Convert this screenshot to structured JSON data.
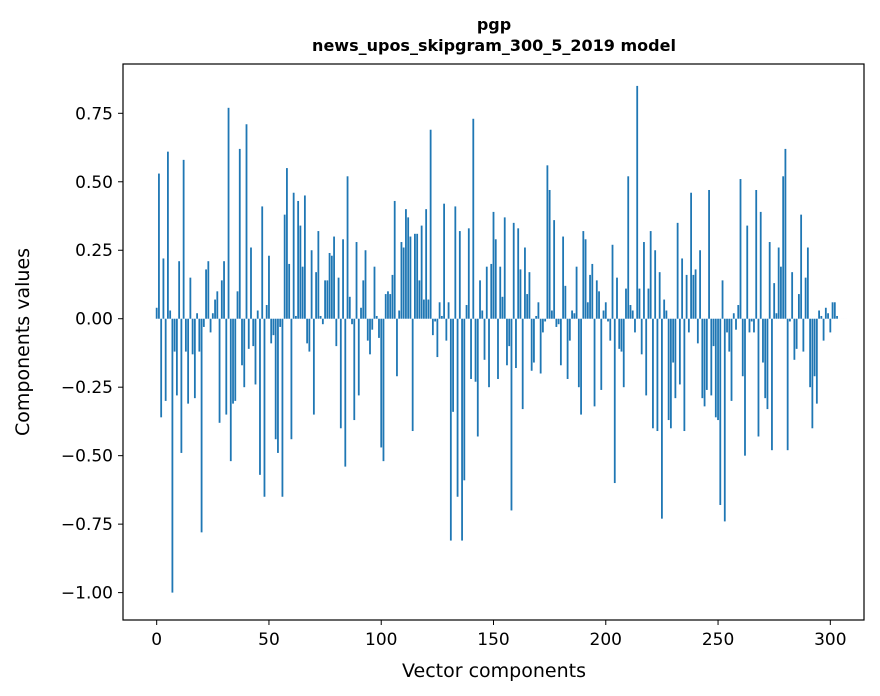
{
  "chart_data": {
    "type": "bar",
    "title": "pgp",
    "subtitle": "news_upos_skipgram_300_5_2019 model",
    "xlabel": "Vector components",
    "ylabel": "Components values",
    "xlim": [
      -15,
      315
    ],
    "ylim": [
      -1.1,
      0.93
    ],
    "xticks": [
      0,
      50,
      100,
      150,
      200,
      250,
      300
    ],
    "xtick_labels": [
      "0",
      "50",
      "100",
      "150",
      "200",
      "250",
      "300"
    ],
    "yticks": [
      -1.0,
      -0.75,
      -0.5,
      -0.25,
      0.0,
      0.25,
      0.5,
      0.75
    ],
    "ytick_labels": [
      "−1.00",
      "−0.75",
      "−0.50",
      "−0.25",
      "0.00",
      "0.25",
      "0.50",
      "0.75"
    ],
    "bar_color": "#1f77b4",
    "grid": false,
    "legend": "none",
    "x_start": 0,
    "values": [
      0.04,
      0.53,
      -0.36,
      0.22,
      -0.3,
      0.61,
      0.03,
      -1.0,
      -0.12,
      -0.28,
      0.21,
      -0.49,
      0.58,
      -0.12,
      -0.31,
      0.15,
      -0.13,
      -0.29,
      0.02,
      -0.12,
      -0.78,
      -0.03,
      0.18,
      0.21,
      -0.05,
      0.02,
      0.07,
      0.1,
      -0.38,
      0.14,
      0.21,
      -0.35,
      0.77,
      -0.52,
      -0.31,
      -0.3,
      0.1,
      0.62,
      -0.17,
      -0.25,
      0.71,
      -0.11,
      0.26,
      -0.1,
      -0.24,
      0.03,
      -0.57,
      0.41,
      -0.65,
      0.05,
      0.23,
      -0.09,
      -0.06,
      -0.44,
      -0.49,
      -0.03,
      -0.65,
      0.38,
      0.55,
      0.2,
      -0.44,
      0.46,
      0.01,
      0.43,
      0.34,
      0.19,
      0.45,
      -0.09,
      -0.12,
      0.25,
      -0.35,
      0.17,
      0.32,
      0.01,
      -0.02,
      0.14,
      0.14,
      0.24,
      0.23,
      0.3,
      -0.1,
      0.15,
      -0.4,
      0.29,
      -0.54,
      0.52,
      0.08,
      -0.02,
      -0.37,
      0.28,
      -0.28,
      0.04,
      0.14,
      0.25,
      -0.08,
      -0.13,
      -0.04,
      0.19,
      0.01,
      -0.07,
      -0.47,
      -0.52,
      0.09,
      0.1,
      0.09,
      0.16,
      0.43,
      -0.21,
      0.03,
      0.28,
      0.26,
      0.4,
      0.37,
      0.3,
      -0.41,
      0.31,
      0.31,
      0.14,
      0.34,
      0.07,
      0.4,
      0.07,
      0.69,
      -0.06,
      -0.01,
      -0.14,
      0.06,
      0.01,
      0.42,
      -0.08,
      0.06,
      -0.81,
      -0.34,
      0.41,
      -0.65,
      0.32,
      -0.81,
      -0.59,
      0.05,
      0.33,
      -0.22,
      0.73,
      -0.23,
      -0.43,
      0.14,
      0.03,
      -0.15,
      0.19,
      -0.25,
      0.2,
      0.39,
      0.29,
      -0.22,
      0.19,
      0.08,
      0.37,
      -0.17,
      -0.1,
      -0.7,
      0.35,
      -0.18,
      0.33,
      0.18,
      -0.33,
      0.26,
      0.09,
      0.17,
      -0.19,
      -0.16,
      0.01,
      0.06,
      -0.2,
      -0.05,
      -0.01,
      0.56,
      0.47,
      0.03,
      0.36,
      -0.03,
      -0.02,
      -0.17,
      0.3,
      0.12,
      -0.22,
      -0.08,
      0.03,
      0.02,
      0.19,
      -0.25,
      -0.35,
      0.32,
      0.29,
      0.06,
      0.16,
      0.2,
      -0.32,
      0.14,
      0.1,
      -0.26,
      0.03,
      0.06,
      -0.01,
      -0.08,
      0.27,
      -0.6,
      0.15,
      -0.11,
      -0.12,
      -0.25,
      0.11,
      0.52,
      0.05,
      0.03,
      -0.05,
      0.85,
      0.11,
      -0.13,
      0.28,
      -0.28,
      0.11,
      0.32,
      -0.4,
      0.25,
      -0.41,
      0.17,
      -0.73,
      0.07,
      0.03,
      -0.37,
      -0.4,
      -0.16,
      -0.29,
      0.35,
      -0.24,
      0.22,
      -0.41,
      0.16,
      -0.05,
      0.46,
      0.16,
      0.18,
      -0.09,
      0.25,
      -0.29,
      -0.32,
      -0.26,
      0.47,
      -0.28,
      -0.1,
      -0.36,
      -0.37,
      -0.68,
      0.14,
      -0.74,
      -0.05,
      -0.12,
      -0.3,
      0.02,
      -0.04,
      0.05,
      0.51,
      -0.21,
      -0.5,
      0.34,
      -0.05,
      -0.01,
      -0.05,
      0.47,
      -0.43,
      0.39,
      -0.16,
      -0.29,
      -0.33,
      0.28,
      -0.48,
      0.13,
      0.02,
      0.26,
      0.19,
      0.52,
      0.62,
      -0.48,
      -0.01,
      0.17,
      -0.15,
      -0.11,
      0.09,
      0.38,
      -0.12,
      0.15,
      0.26,
      -0.25,
      -0.4,
      -0.21,
      -0.31,
      0.03,
      0.01,
      -0.08,
      0.04,
      0.02,
      -0.05,
      0.06,
      0.06,
      0.01,
      0.0,
      0.0,
      0.0,
      0.0
    ],
    "_note_removed": true
  }
}
